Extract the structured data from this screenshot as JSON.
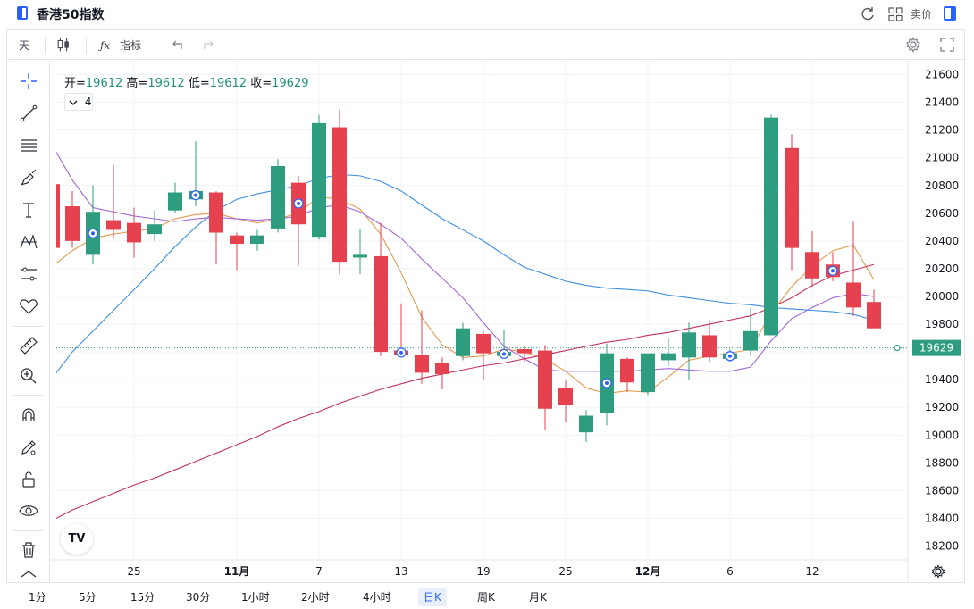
{
  "header": {
    "title": "香港50指数",
    "sell_label": "卖价"
  },
  "toolbar": {
    "interval": "天",
    "indicators": "指标"
  },
  "legend": {
    "open_label": "开=",
    "open": "19612",
    "high_label": "高=",
    "high": "19612",
    "low_label": "低=",
    "low": "19612",
    "close_label": "收=",
    "close": "19629",
    "indicator_count": "4"
  },
  "timeframes": [
    {
      "label": "1分",
      "active": false
    },
    {
      "label": "5分",
      "active": false
    },
    {
      "label": "15分",
      "active": false
    },
    {
      "label": "30分",
      "active": false
    },
    {
      "label": "1小时",
      "active": false
    },
    {
      "label": "2小时",
      "active": false
    },
    {
      "label": "4小时",
      "active": false
    },
    {
      "label": "日K",
      "active": true
    },
    {
      "label": "周K",
      "active": false
    },
    {
      "label": "月K",
      "active": false
    }
  ],
  "colors": {
    "up": "#2e9c7f",
    "down": "#e5414e",
    "ma_blue": "#3d8fe0",
    "ma_purple": "#a468d6",
    "ma_orange": "#e39a4b",
    "ma_crimson": "#c4305a",
    "price_line": "#2e9c7f"
  },
  "chart_data": {
    "type": "candlestick",
    "title": "香港50指数",
    "ylim": [
      18100,
      21700
    ],
    "y_ticks": [
      18200,
      18400,
      18600,
      18800,
      19000,
      19200,
      19400,
      19600,
      19800,
      20000,
      20200,
      20400,
      20600,
      20800,
      21000,
      21200,
      21400,
      21600
    ],
    "x_labels": [
      {
        "label": "25",
        "index": 3
      },
      {
        "label": "11月",
        "index": 8
      },
      {
        "label": "7",
        "index": 12
      },
      {
        "label": "13",
        "index": 16
      },
      {
        "label": "19",
        "index": 20
      },
      {
        "label": "25",
        "index": 24
      },
      {
        "label": "12月",
        "index": 28
      },
      {
        "label": "6",
        "index": 32
      },
      {
        "label": "12",
        "index": 36
      }
    ],
    "last_price": 19629,
    "candles": [
      {
        "o": 20650,
        "h": 20760,
        "l": 20350,
        "c": 20400
      },
      {
        "o": 20300,
        "h": 20800,
        "l": 20230,
        "c": 20610
      },
      {
        "o": 20550,
        "h": 20950,
        "l": 20420,
        "c": 20480
      },
      {
        "o": 20530,
        "h": 20640,
        "l": 20280,
        "c": 20390
      },
      {
        "o": 20450,
        "h": 20620,
        "l": 20400,
        "c": 20520
      },
      {
        "o": 20620,
        "h": 20820,
        "l": 20600,
        "c": 20750
      },
      {
        "o": 20700,
        "h": 21120,
        "l": 20650,
        "c": 20760
      },
      {
        "o": 20750,
        "h": 20760,
        "l": 20230,
        "c": 20460
      },
      {
        "o": 20440,
        "h": 20460,
        "l": 20190,
        "c": 20380
      },
      {
        "o": 20380,
        "h": 20480,
        "l": 20330,
        "c": 20440
      },
      {
        "o": 20490,
        "h": 20990,
        "l": 20460,
        "c": 20940
      },
      {
        "o": 20820,
        "h": 20870,
        "l": 20220,
        "c": 20520
      },
      {
        "o": 20430,
        "h": 21310,
        "l": 20410,
        "c": 21250
      },
      {
        "o": 21220,
        "h": 21350,
        "l": 20160,
        "c": 20250
      },
      {
        "o": 20280,
        "h": 20490,
        "l": 20160,
        "c": 20300
      },
      {
        "o": 20290,
        "h": 20530,
        "l": 19570,
        "c": 19600
      },
      {
        "o": 19610,
        "h": 19950,
        "l": 19580,
        "c": 19580
      },
      {
        "o": 19580,
        "h": 19900,
        "l": 19370,
        "c": 19450
      },
      {
        "o": 19520,
        "h": 19560,
        "l": 19330,
        "c": 19440
      },
      {
        "o": 19570,
        "h": 19810,
        "l": 19540,
        "c": 19770
      },
      {
        "o": 19730,
        "h": 19750,
        "l": 19400,
        "c": 19590
      },
      {
        "o": 19570,
        "h": 19760,
        "l": 19560,
        "c": 19600
      },
      {
        "o": 19620,
        "h": 19640,
        "l": 19530,
        "c": 19590
      },
      {
        "o": 19610,
        "h": 19650,
        "l": 19040,
        "c": 19190
      },
      {
        "o": 19340,
        "h": 19400,
        "l": 19090,
        "c": 19220
      },
      {
        "o": 19020,
        "h": 19180,
        "l": 18950,
        "c": 19140
      },
      {
        "o": 19160,
        "h": 19660,
        "l": 19070,
        "c": 19590
      },
      {
        "o": 19550,
        "h": 19560,
        "l": 19310,
        "c": 19380
      },
      {
        "o": 19310,
        "h": 19580,
        "l": 19290,
        "c": 19590
      },
      {
        "o": 19540,
        "h": 19700,
        "l": 19500,
        "c": 19590
      },
      {
        "o": 19560,
        "h": 19810,
        "l": 19400,
        "c": 19740
      },
      {
        "o": 19720,
        "h": 19830,
        "l": 19530,
        "c": 19560
      },
      {
        "o": 19550,
        "h": 19620,
        "l": 19530,
        "c": 19590
      },
      {
        "o": 19610,
        "h": 19920,
        "l": 19570,
        "c": 19750
      },
      {
        "o": 19720,
        "h": 21310,
        "l": 19720,
        "c": 21290
      },
      {
        "o": 21070,
        "h": 21170,
        "l": 20190,
        "c": 20350
      },
      {
        "o": 20320,
        "h": 20470,
        "l": 20070,
        "c": 20130
      },
      {
        "o": 20230,
        "h": 20320,
        "l": 20110,
        "c": 20140
      },
      {
        "o": 20100,
        "h": 20540,
        "l": 19860,
        "c": 19920
      },
      {
        "o": 19960,
        "h": 20050,
        "l": 19770,
        "c": 19770
      }
    ],
    "event_markers": [
      1,
      6,
      11,
      16,
      21,
      26,
      32,
      37
    ],
    "series": [
      {
        "type": "ma",
        "values": [
          20330,
          20420,
          20450,
          20470,
          20490,
          20560,
          20590,
          20600,
          20560,
          20530,
          20560,
          20600,
          20720,
          20700,
          20630,
          20450,
          20170,
          19850,
          19650,
          19560,
          19570,
          19620,
          19600,
          19550,
          19460,
          19340,
          19300,
          19320,
          19310,
          19420,
          19540,
          19570,
          19590,
          19620,
          19880,
          20070,
          20220,
          20330,
          20370,
          20120
        ]
      },
      {
        "type": "ma",
        "values": [
          20840,
          20640,
          20610,
          20580,
          20560,
          20540,
          20560,
          20570,
          20560,
          20550,
          20560,
          20580,
          20640,
          20660,
          20610,
          20520,
          20420,
          20270,
          20130,
          19990,
          19810,
          19640,
          19550,
          19470,
          19460,
          19460,
          19460,
          19460,
          19470,
          19480,
          19470,
          19460,
          19460,
          19490,
          19680,
          19840,
          19920,
          19990,
          20020,
          20000
        ]
      },
      {
        "type": "ma",
        "values": [
          19600,
          19750,
          19900,
          20050,
          20200,
          20360,
          20500,
          20620,
          20700,
          20740,
          20770,
          20800,
          20850,
          20880,
          20870,
          20830,
          20760,
          20660,
          20560,
          20480,
          20400,
          20300,
          20210,
          20160,
          20110,
          20080,
          20060,
          20050,
          20040,
          20010,
          19990,
          19970,
          19950,
          19940,
          19920,
          19910,
          19900,
          19890,
          19870,
          19830
        ]
      },
      {
        "type": "ma",
        "values": [
          18460,
          18520,
          18580,
          18640,
          18690,
          18750,
          18810,
          18870,
          18930,
          18990,
          19060,
          19120,
          19170,
          19230,
          19280,
          19330,
          19370,
          19410,
          19440,
          19470,
          19500,
          19520,
          19550,
          19580,
          19610,
          19640,
          19670,
          19690,
          19720,
          19740,
          19770,
          19800,
          19830,
          19860,
          19920,
          19990,
          20080,
          20150,
          20190,
          20230
        ]
      }
    ]
  }
}
